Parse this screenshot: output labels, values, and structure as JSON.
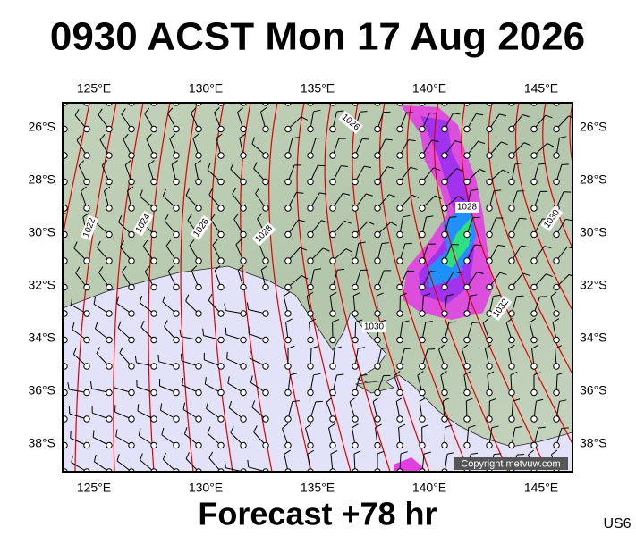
{
  "header": {
    "title": "0930 ACST Mon 17 Aug 2026"
  },
  "map": {
    "lon_labels": [
      "125°E",
      "130°E",
      "135°E",
      "140°E",
      "145°E"
    ],
    "lat_labels": [
      "26°S",
      "28°S",
      "30°S",
      "32°S",
      "34°S",
      "36°S",
      "38°S"
    ],
    "isobar_labels": [
      "1026",
      "1022",
      "1024",
      "1026",
      "1028",
      "1028",
      "1030",
      "1030",
      "1032"
    ],
    "copyright": "Copyright metvuw.com"
  },
  "footer": {
    "forecast": "Forecast +78 hr",
    "code": "US6"
  }
}
